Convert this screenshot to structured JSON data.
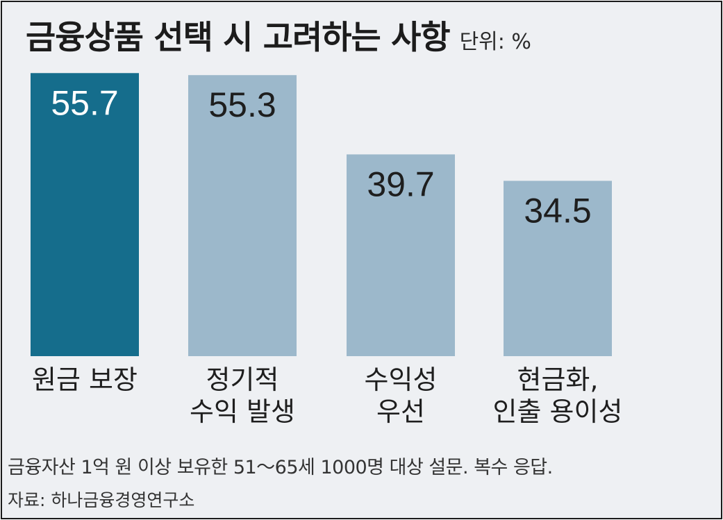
{
  "chart_data": {
    "type": "bar",
    "title": "금융상품 선택 시 고려하는 사항",
    "unit_label": "단위: %",
    "categories": [
      [
        "원금 보장"
      ],
      [
        "정기적",
        "수익 발생"
      ],
      [
        "수익성",
        "우선"
      ],
      [
        "현금화,",
        "인출 용이성"
      ]
    ],
    "values": [
      55.7,
      55.3,
      39.7,
      34.5
    ],
    "value_labels": [
      "55.7",
      "55.3",
      "39.7",
      "34.5"
    ],
    "highlight_index": 0,
    "grid": false,
    "legend": "none"
  },
  "colors": {
    "highlight_bar": "#156d8c",
    "bar": "#9cb8cb",
    "highlight_value_text": "#ffffff",
    "value_text": "#1e1e1e",
    "background": "#eef0f3"
  },
  "note": "금융자산 1억 원 이상 보유한 51～65세 1000명 대상 설문. 복수 응답.",
  "source": "자료: 하나금융경영연구소"
}
